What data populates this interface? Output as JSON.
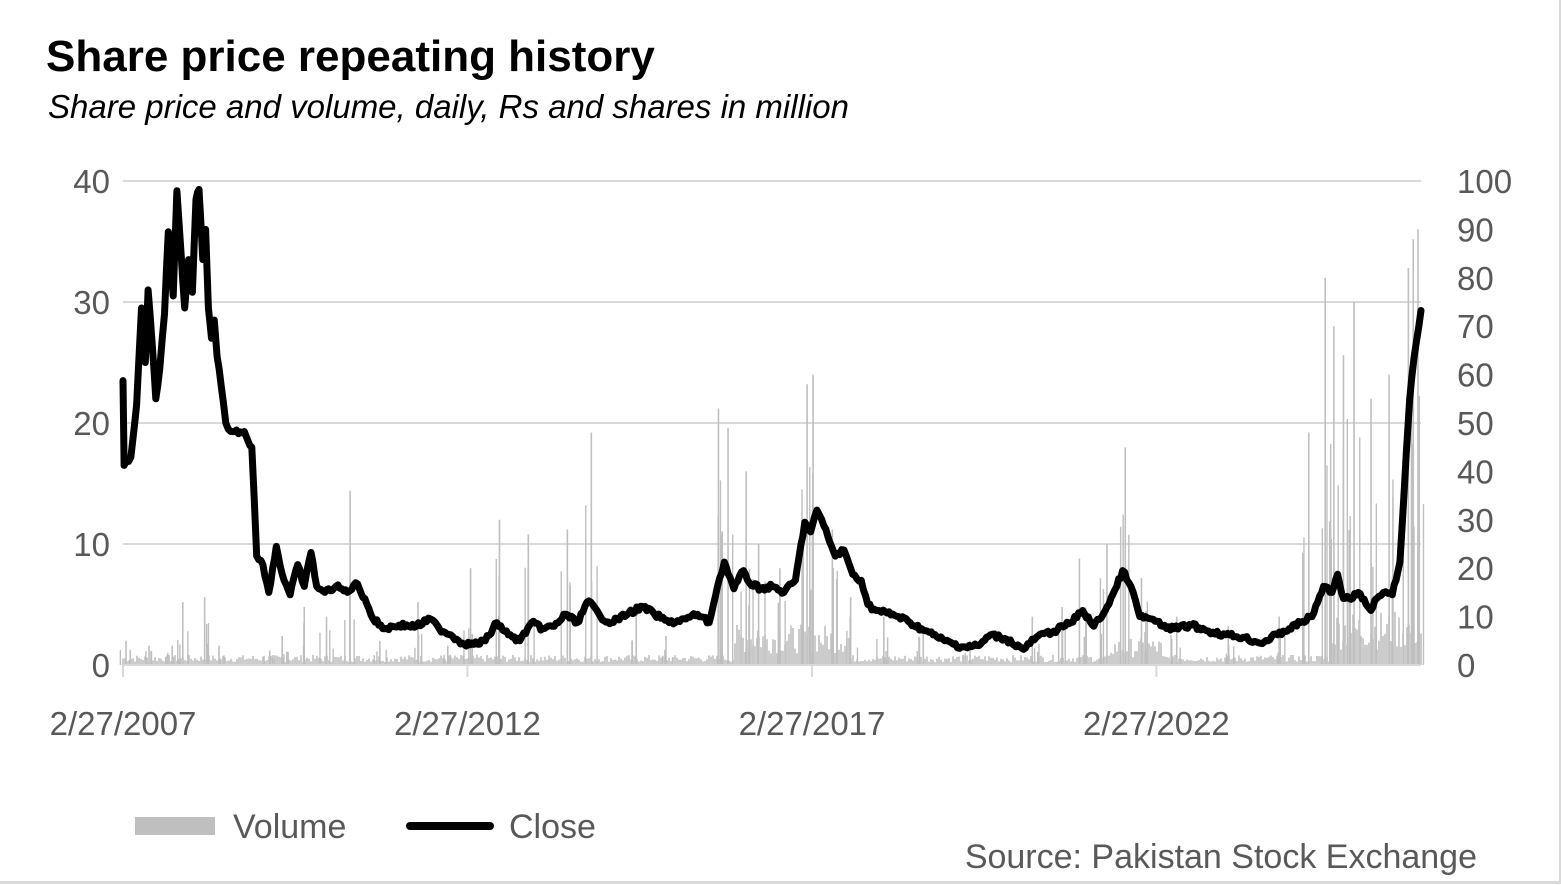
{
  "chart_data": {
    "type": "line",
    "title": "Share price repeating history",
    "subtitle": "Share price and volume, daily, Rs and shares in million",
    "source": "Source: Pakistan Stock Exchange",
    "x_start": "2007-02-27",
    "x_end": "2025-12-31",
    "x_ticks": [
      "2/27/2007",
      "2/27/2012",
      "2/27/2017",
      "2/27/2022"
    ],
    "x_tick_dates": [
      "2007-02-27",
      "2012-02-27",
      "2017-02-27",
      "2022-02-27"
    ],
    "y_left": {
      "range": [
        0,
        40
      ],
      "ticks": [
        "0",
        "10",
        "20",
        "30",
        "40"
      ]
    },
    "y_right": {
      "range": [
        0,
        100
      ],
      "ticks": [
        "0",
        "10",
        "20",
        "30",
        "40",
        "50",
        "60",
        "70",
        "80",
        "90",
        "100"
      ]
    },
    "grid": true,
    "legend_position": "bottom-left",
    "colors": {
      "close": "#000000",
      "volume": "#bfbfbf",
      "grid": "#d9d9d9",
      "text": "#595959"
    },
    "series": [
      {
        "name": "Close",
        "axis": "left",
        "points": [
          [
            "2007-02-27",
            23.5
          ],
          [
            "2007-03-05",
            16.5
          ],
          [
            "2007-04-10",
            17.2
          ],
          [
            "2007-05-10",
            21.5
          ],
          [
            "2007-06-05",
            29.5
          ],
          [
            "2007-06-25",
            25.0
          ],
          [
            "2007-07-10",
            31.0
          ],
          [
            "2007-08-01",
            26.5
          ],
          [
            "2007-08-20",
            22.0
          ],
          [
            "2007-09-10",
            24.5
          ],
          [
            "2007-10-05",
            29.0
          ],
          [
            "2007-10-25",
            35.8
          ],
          [
            "2007-11-20",
            30.5
          ],
          [
            "2007-12-10",
            39.2
          ],
          [
            "2008-01-01",
            34.0
          ],
          [
            "2008-01-20",
            29.5
          ],
          [
            "2008-02-10",
            33.5
          ],
          [
            "2008-03-01",
            30.8
          ],
          [
            "2008-03-20",
            38.5
          ],
          [
            "2008-04-05",
            39.3
          ],
          [
            "2008-04-25",
            33.5
          ],
          [
            "2008-05-10",
            36.0
          ],
          [
            "2008-05-25",
            29.5
          ],
          [
            "2008-06-10",
            27.0
          ],
          [
            "2008-06-25",
            28.5
          ],
          [
            "2008-07-10",
            25.5
          ],
          [
            "2008-08-01",
            23.0
          ],
          [
            "2008-08-25",
            20.0
          ],
          [
            "2008-09-20",
            19.3
          ],
          [
            "2008-12-01",
            19.3
          ],
          [
            "2009-01-10",
            18.0
          ],
          [
            "2009-02-05",
            9.0
          ],
          [
            "2009-03-10",
            8.3
          ],
          [
            "2009-04-10",
            6.0
          ],
          [
            "2009-05-20",
            9.8
          ],
          [
            "2009-06-20",
            7.5
          ],
          [
            "2009-08-01",
            5.8
          ],
          [
            "2009-09-10",
            8.3
          ],
          [
            "2009-10-15",
            6.5
          ],
          [
            "2009-11-20",
            9.3
          ],
          [
            "2009-12-20",
            6.5
          ],
          [
            "2010-02-01",
            6.0
          ],
          [
            "2010-04-01",
            6.5
          ],
          [
            "2010-06-01",
            6.0
          ],
          [
            "2010-07-15",
            6.8
          ],
          [
            "2010-09-01",
            5.5
          ],
          [
            "2010-10-15",
            3.8
          ],
          [
            "2010-12-15",
            3.0
          ],
          [
            "2011-03-01",
            3.3
          ],
          [
            "2011-06-01",
            3.2
          ],
          [
            "2011-08-15",
            3.8
          ],
          [
            "2011-10-01",
            3.0
          ],
          [
            "2011-12-01",
            2.5
          ],
          [
            "2012-02-01",
            1.8
          ],
          [
            "2012-04-01",
            1.7
          ],
          [
            "2012-06-01",
            2.0
          ],
          [
            "2012-08-01",
            3.5
          ],
          [
            "2012-10-01",
            2.5
          ],
          [
            "2012-12-01",
            2.0
          ],
          [
            "2013-02-01",
            3.5
          ],
          [
            "2013-04-01",
            3.0
          ],
          [
            "2013-06-01",
            3.2
          ],
          [
            "2013-08-01",
            4.2
          ],
          [
            "2013-10-01",
            3.5
          ],
          [
            "2013-12-01",
            5.3
          ],
          [
            "2014-02-01",
            4.0
          ],
          [
            "2014-04-01",
            3.5
          ],
          [
            "2014-07-01",
            4.3
          ],
          [
            "2014-09-15",
            4.8
          ],
          [
            "2014-11-15",
            4.2
          ],
          [
            "2015-02-01",
            3.5
          ],
          [
            "2015-05-01",
            3.8
          ],
          [
            "2015-07-01",
            4.2
          ],
          [
            "2015-09-01",
            3.5
          ],
          [
            "2015-10-15",
            6.5
          ],
          [
            "2015-11-20",
            8.5
          ],
          [
            "2016-01-10",
            6.3
          ],
          [
            "2016-03-01",
            7.8
          ],
          [
            "2016-04-01",
            6.8
          ],
          [
            "2016-06-01",
            6.3
          ],
          [
            "2016-08-01",
            6.5
          ],
          [
            "2016-10-01",
            6.0
          ],
          [
            "2016-12-01",
            7.0
          ],
          [
            "2017-01-20",
            11.8
          ],
          [
            "2017-02-20",
            11.0
          ],
          [
            "2017-03-25",
            12.8
          ],
          [
            "2017-05-01",
            11.5
          ],
          [
            "2017-07-01",
            9.0
          ],
          [
            "2017-08-15",
            9.5
          ],
          [
            "2017-10-01",
            7.5
          ],
          [
            "2017-11-15",
            7.0
          ],
          [
            "2017-12-20",
            5.0
          ],
          [
            "2018-02-01",
            4.5
          ],
          [
            "2018-04-01",
            4.3
          ],
          [
            "2018-06-01",
            4.0
          ],
          [
            "2018-08-01",
            3.5
          ],
          [
            "2018-10-01",
            3.0
          ],
          [
            "2018-12-01",
            2.5
          ],
          [
            "2019-02-01",
            2.0
          ],
          [
            "2019-05-01",
            1.5
          ],
          [
            "2019-08-01",
            1.6
          ],
          [
            "2019-10-01",
            2.5
          ],
          [
            "2019-12-15",
            2.2
          ],
          [
            "2020-03-25",
            1.3
          ],
          [
            "2020-06-01",
            2.3
          ],
          [
            "2020-09-01",
            2.8
          ],
          [
            "2020-12-01",
            3.5
          ],
          [
            "2021-02-01",
            4.5
          ],
          [
            "2021-04-01",
            3.2
          ],
          [
            "2021-06-01",
            4.5
          ],
          [
            "2021-08-01",
            6.5
          ],
          [
            "2021-09-01",
            7.8
          ],
          [
            "2021-10-15",
            6.5
          ],
          [
            "2021-12-01",
            4.0
          ],
          [
            "2022-02-01",
            3.8
          ],
          [
            "2022-04-01",
            3.2
          ],
          [
            "2022-06-01",
            3.0
          ],
          [
            "2022-09-01",
            3.3
          ],
          [
            "2022-12-01",
            2.8
          ],
          [
            "2023-03-01",
            2.5
          ],
          [
            "2023-06-01",
            2.3
          ],
          [
            "2023-09-01",
            1.8
          ],
          [
            "2023-12-01",
            2.5
          ],
          [
            "2024-02-01",
            3.0
          ],
          [
            "2024-04-01",
            3.5
          ],
          [
            "2024-06-01",
            4.0
          ],
          [
            "2024-08-01",
            6.5
          ],
          [
            "2024-09-15",
            6.0
          ],
          [
            "2024-10-15",
            7.5
          ],
          [
            "2024-11-15",
            5.5
          ],
          [
            "2024-12-15",
            5.5
          ],
          [
            "2025-02-01",
            6.0
          ],
          [
            "2025-03-15",
            5.0
          ],
          [
            "2025-04-10",
            4.5
          ],
          [
            "2025-05-10",
            5.5
          ],
          [
            "2025-06-15",
            6.0
          ],
          [
            "2025-08-01",
            5.8
          ],
          [
            "2025-09-10",
            8.5
          ],
          [
            "2025-10-05",
            15.0
          ],
          [
            "2025-11-01",
            22.0
          ],
          [
            "2025-11-25",
            25.5
          ],
          [
            "2025-12-31",
            29.3
          ]
        ]
      },
      {
        "name": "Volume",
        "axis": "right",
        "points": [
          [
            "2007-03-15",
            5
          ],
          [
            "2007-07-15",
            4
          ],
          [
            "2007-11-15",
            4
          ],
          [
            "2008-01-10",
            13
          ],
          [
            "2008-05-05",
            14
          ],
          [
            "2008-07-20",
            4
          ],
          [
            "2009-04-15",
            3
          ],
          [
            "2009-06-20",
            6
          ],
          [
            "2009-10-15",
            12
          ],
          [
            "2010-02-10",
            10
          ],
          [
            "2010-06-15",
            36
          ],
          [
            "2010-11-20",
            5
          ],
          [
            "2011-06-10",
            13
          ],
          [
            "2011-11-15",
            4
          ],
          [
            "2012-03-15",
            20
          ],
          [
            "2012-08-15",
            30
          ],
          [
            "2013-01-15",
            27
          ],
          [
            "2013-08-10",
            28
          ],
          [
            "2013-12-15",
            48
          ],
          [
            "2014-08-10",
            12
          ],
          [
            "2015-01-15",
            6
          ],
          [
            "2015-10-20",
            53
          ],
          [
            "2015-12-10",
            49
          ],
          [
            "2016-03-15",
            40
          ],
          [
            "2016-05-20",
            25
          ],
          [
            "2016-09-10",
            20
          ],
          [
            "2017-02-01",
            58
          ],
          [
            "2017-03-05",
            60
          ],
          [
            "2017-06-15",
            28
          ],
          [
            "2017-09-20",
            14
          ],
          [
            "2018-03-15",
            10
          ],
          [
            "2018-10-10",
            8
          ],
          [
            "2019-06-15",
            5
          ],
          [
            "2020-05-10",
            10
          ],
          [
            "2020-10-15",
            12
          ],
          [
            "2021-01-15",
            22
          ],
          [
            "2021-06-10",
            25
          ],
          [
            "2021-09-15",
            45
          ],
          [
            "2021-12-10",
            18
          ],
          [
            "2022-06-15",
            10
          ],
          [
            "2023-03-15",
            8
          ],
          [
            "2023-12-10",
            10
          ],
          [
            "2024-05-15",
            48
          ],
          [
            "2024-08-10",
            80
          ],
          [
            "2024-09-25",
            70
          ],
          [
            "2024-11-15",
            64
          ],
          [
            "2025-01-10",
            75
          ],
          [
            "2025-04-10",
            55
          ],
          [
            "2025-07-15",
            60
          ],
          [
            "2025-10-25",
            82
          ],
          [
            "2025-11-20",
            88
          ],
          [
            "2025-12-15",
            90
          ]
        ]
      }
    ]
  }
}
